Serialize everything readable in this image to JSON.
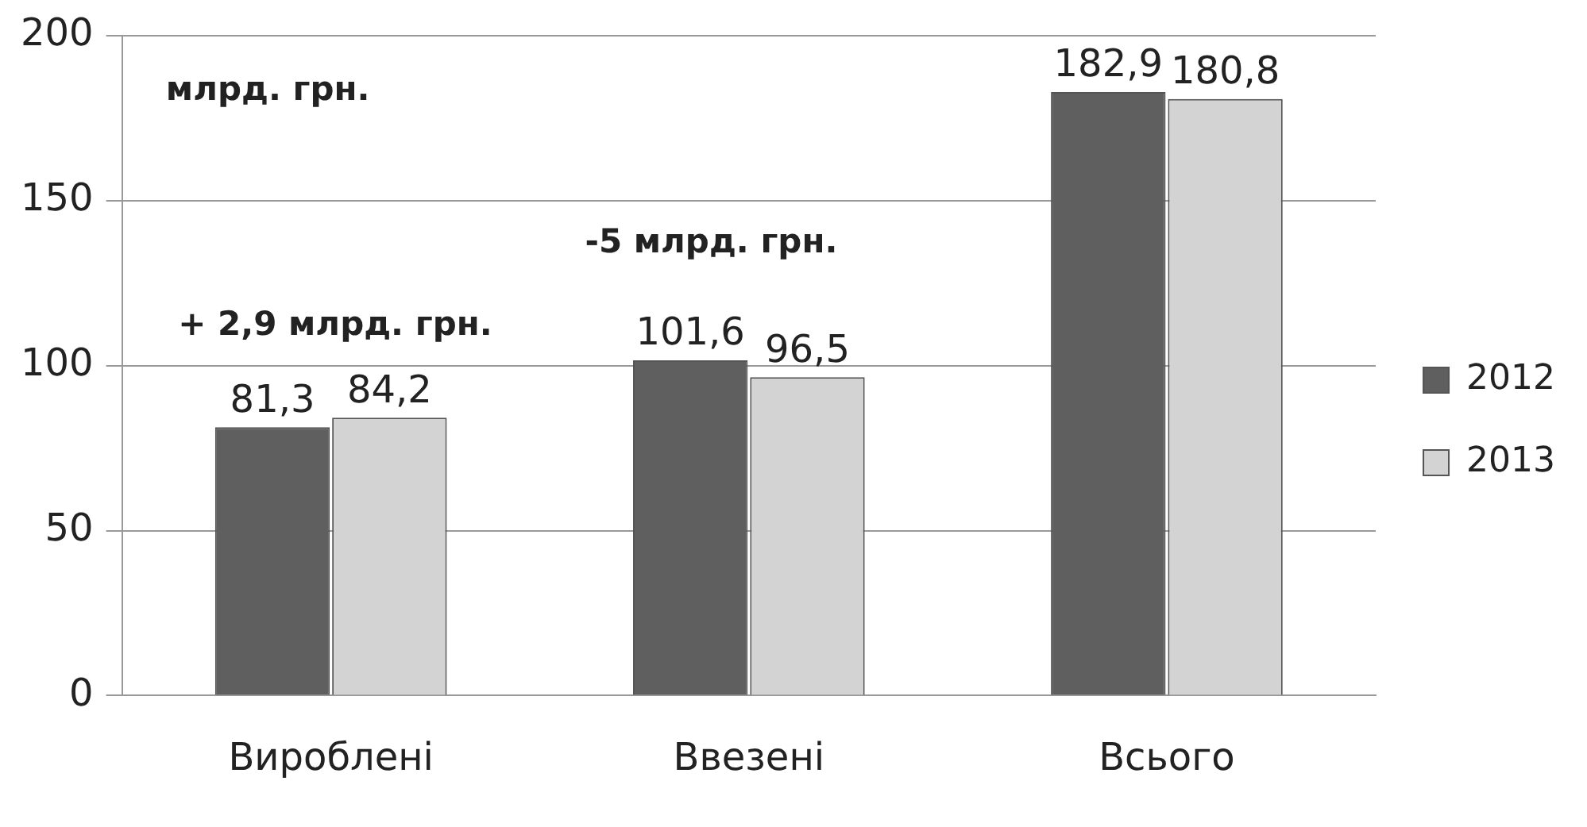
{
  "chart_data": {
    "type": "bar",
    "categories": [
      "Вироблені",
      "Ввезені",
      "Всього"
    ],
    "series": [
      {
        "name": "2012",
        "color": "#5f5f5f",
        "values": [
          81.3,
          101.6,
          182.9
        ],
        "value_labels": [
          "81,3",
          "101,6",
          "182,9"
        ]
      },
      {
        "name": "2013",
        "color": "#d3d3d3",
        "values": [
          84.2,
          96.5,
          180.8
        ],
        "value_labels": [
          "84,2",
          "96,5",
          "180,8"
        ]
      }
    ],
    "ylim": [
      0,
      200
    ],
    "yticks": [
      0,
      50,
      100,
      150,
      200
    ],
    "grid": "y",
    "legend": "right",
    "annotations": [
      "млрд. грн.",
      "+ 2,9 млрд. грн.",
      "-5 млрд. грн."
    ]
  }
}
